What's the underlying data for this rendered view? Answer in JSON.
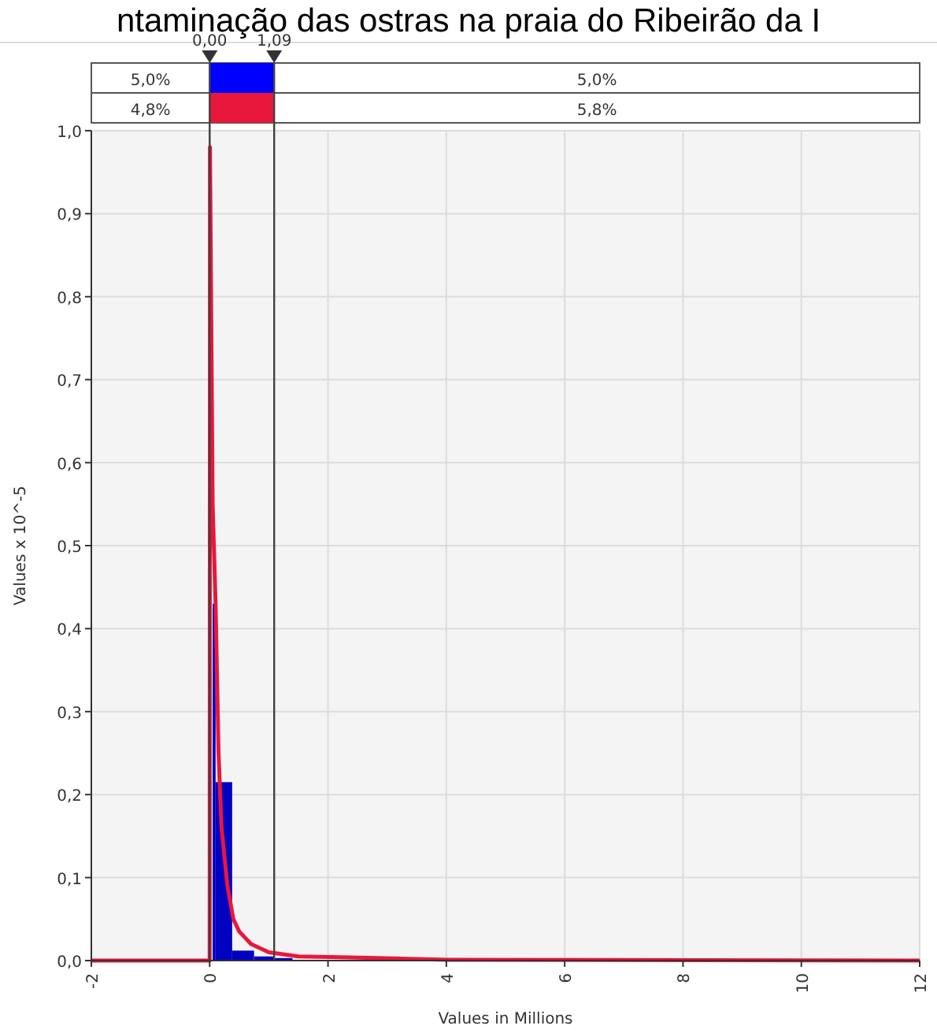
{
  "chart_data": {
    "type": "histogram",
    "title": "ntaminação das ostras na praia do Ribeirão da I",
    "xlabel": "Values in Millions",
    "ylabel": "Values x 10^-5",
    "xlim": [
      -2,
      12
    ],
    "xticks": [
      -2,
      0,
      2,
      4,
      6,
      8,
      10,
      12
    ],
    "ylim": [
      0,
      1
    ],
    "yticks": [
      {
        "value": 0,
        "label": "0,0"
      },
      {
        "value": 0.1,
        "label": "0,1"
      },
      {
        "value": 0.2,
        "label": "0,2"
      },
      {
        "value": 0.3,
        "label": "0,3"
      },
      {
        "value": 0.4,
        "label": "0,4"
      },
      {
        "value": 0.5,
        "label": "0,5"
      },
      {
        "value": 0.6,
        "label": "0,6"
      },
      {
        "value": 0.7,
        "label": "0,7"
      },
      {
        "value": 0.8,
        "label": "0,8"
      },
      {
        "value": 0.9,
        "label": "0,9"
      },
      {
        "value": 1,
        "label": "1,0"
      }
    ],
    "grid": true,
    "series": [
      {
        "color": "#0000c0",
        "bins": [
          0.05,
          0.1,
          0.38,
          0.75,
          1.1,
          1.4
        ],
        "values": [
          0.43,
          0.215,
          0.012,
          0.005,
          0.003
        ]
      },
      {
        "type": "line",
        "color": "#e8173c",
        "x": [
          -2,
          0,
          0.005,
          0.05,
          0.1,
          0.15,
          0.2,
          0.3,
          0.4,
          0.5,
          0.7,
          1.0,
          1.5,
          2.2,
          4,
          12
        ],
        "values": [
          0,
          0,
          0.98,
          0.55,
          0.43,
          0.25,
          0.16,
          0.09,
          0.05,
          0.035,
          0.02,
          0.01,
          0.005,
          0.004,
          0.001,
          0
        ]
      }
    ],
    "ref_lines": [
      {
        "axis": "x",
        "value": 0,
        "label": "0,00",
        "color": "#404040"
      },
      {
        "axis": "x",
        "value": 1.09,
        "label": "1,09",
        "color": "#404040"
      }
    ],
    "annotations": [
      "5,0%",
      "5,0%",
      "4,8%",
      "5,8%"
    ]
  }
}
